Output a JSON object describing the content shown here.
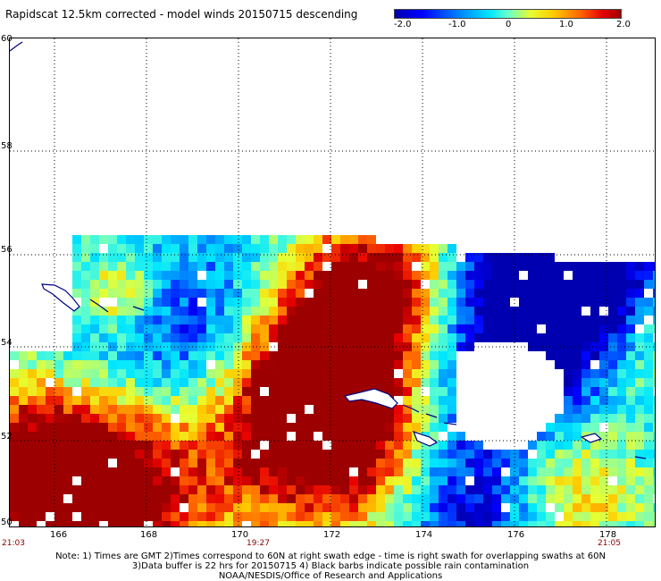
{
  "title": "Rapidscat 12.5km corrected - model winds 20150715 descending",
  "colorbar": {
    "ticks": [
      "-2.0",
      "-1.0",
      "0",
      "1.0",
      "2.0"
    ]
  },
  "lat_labels": [
    "60",
    "58",
    "56",
    "54",
    "52",
    "50"
  ],
  "lon_labels": [
    "166",
    "168",
    "170",
    "172",
    "174",
    "176",
    "178"
  ],
  "time_labels": [
    "21:03",
    "19:27",
    "21:05"
  ],
  "notes": {
    "line1": "Note: 1) Times are GMT 2)Times correspond to 60N at right swath edge - time is right swath for overlapping swaths at 60N",
    "line2": "3)Data buffer is 22 hrs for 20150715 4) Black barbs indicate possible rain contamination",
    "line3": "NOAA/NESDIS/Office of Research and Applications"
  },
  "colors": {
    "land_outline": "#000080",
    "grid": "#000000"
  }
}
